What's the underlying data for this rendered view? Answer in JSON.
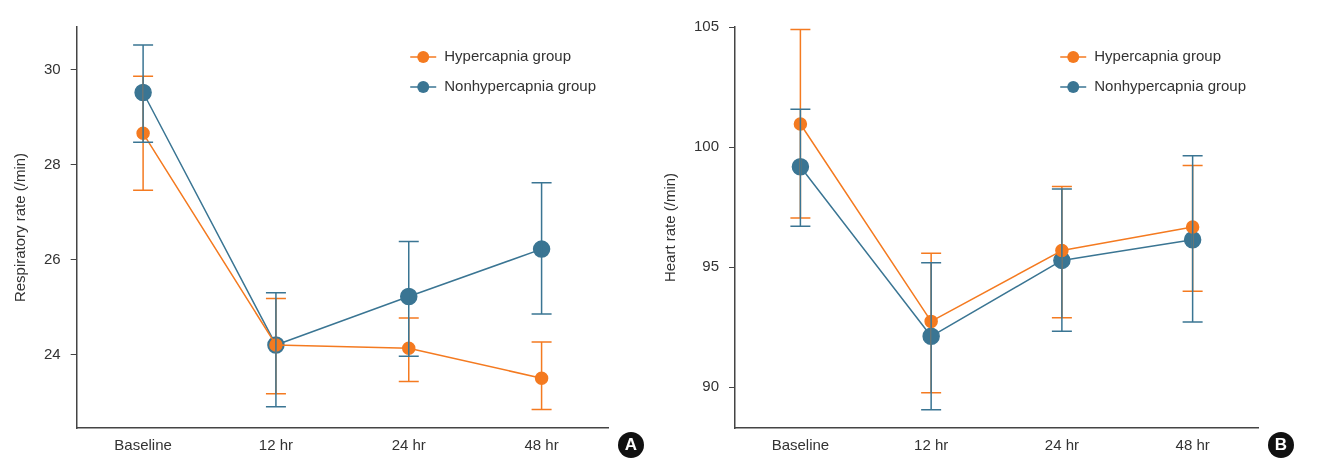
{
  "chart_data": [
    {
      "type": "line",
      "ylabel": "Respiratory rate (/min)",
      "categories": [
        "Baseline",
        "12 hr",
        "24 hr",
        "48 hr"
      ],
      "ylim": [
        22.45,
        30.9
      ],
      "yticks": [
        24,
        26,
        28,
        30
      ],
      "grid": false,
      "legend": "top right",
      "marker": "circle",
      "annotations": [
        "A"
      ],
      "series": [
        {
          "name": "Hypercapnia group",
          "color": "#f47a20",
          "values": [
            28.66,
            24.2,
            24.13,
            23.5
          ],
          "errors": [
            [
              27.46,
              29.86
            ],
            [
              23.17,
              25.18
            ],
            [
              23.43,
              24.77
            ],
            [
              22.84,
              24.26
            ]
          ]
        },
        {
          "name": "Nonhypercapnia group",
          "color": "#3a7593",
          "values": [
            29.52,
            24.2,
            25.22,
            26.22
          ],
          "errors": [
            [
              28.47,
              30.52
            ],
            [
              22.9,
              25.3
            ],
            [
              23.96,
              26.38
            ],
            [
              24.85,
              27.62
            ]
          ]
        }
      ]
    },
    {
      "type": "line",
      "ylabel": "Heart rate (/min)",
      "categories": [
        "Baseline",
        "12 hr",
        "24 hr",
        "48 hr"
      ],
      "ylim": [
        88.3,
        105
      ],
      "yticks": [
        90,
        95,
        100,
        105
      ],
      "grid": false,
      "legend": "top right",
      "marker": "circle",
      "annotations": [
        "B"
      ],
      "series": [
        {
          "name": "Hypercapnia group",
          "color": "#f47a20",
          "values": [
            100.96,
            92.74,
            95.69,
            96.67
          ],
          "errors": [
            [
              97.05,
              104.9
            ],
            [
              89.77,
              95.58
            ],
            [
              92.89,
              98.36
            ],
            [
              93.99,
              99.23
            ]
          ]
        },
        {
          "name": "Nonhypercapnia group",
          "color": "#3a7593",
          "values": [
            99.18,
            92.12,
            95.28,
            96.14
          ],
          "errors": [
            [
              96.7,
              101.57
            ],
            [
              89.06,
              95.18
            ],
            [
              92.33,
              98.25
            ],
            [
              92.71,
              99.64
            ]
          ]
        }
      ]
    }
  ]
}
